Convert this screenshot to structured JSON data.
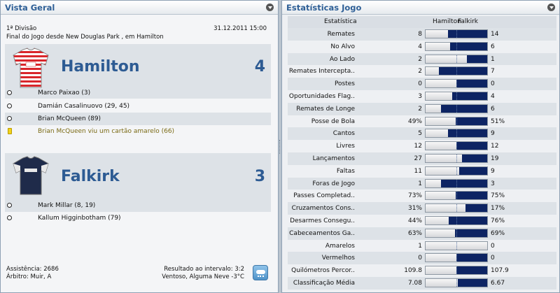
{
  "overview": {
    "title": "Vista Geral",
    "competition": "1ª Divisão",
    "datetime": "31.12.2011 15:00",
    "venue_line": "Final do Jogo desde New Douglas Park , em Hamilton",
    "home": {
      "name": "Hamilton",
      "score": "4",
      "events": [
        {
          "type": "goal",
          "text": "Marco Paixao (3)"
        },
        {
          "type": "goal",
          "text": "Damián Casalinuovo (29, 45)"
        },
        {
          "type": "goal",
          "text": "Brian McQueen (89)"
        },
        {
          "type": "yellow-card",
          "text": "Brian McQueen viu um cartão amarelo (66)"
        }
      ]
    },
    "away": {
      "name": "Falkirk",
      "score": "3",
      "events": [
        {
          "type": "goal",
          "text": "Mark Millar (8, 19)"
        },
        {
          "type": "goal",
          "text": "Kallum Higginbotham (79)"
        }
      ]
    },
    "attendance": "Assistência: 2686",
    "referee": "Árbitro: Muir, A",
    "halftime": "Resultado ao intervalo: 3:2",
    "weather": "Ventoso, Alguma Neve -3°C"
  },
  "stats": {
    "title": "Estatísticas Jogo",
    "header": {
      "stat": "Estatística",
      "home": "Hamilton",
      "away": "Falkirk"
    },
    "colors": {
      "away_bar": "#0d2463",
      "home_bar": "#e6e8ea"
    },
    "rows": [
      {
        "label": "Remates",
        "home": "8",
        "away": "14",
        "away_share": 0.64
      },
      {
        "label": "No Alvo",
        "home": "4",
        "away": "6",
        "away_share": 0.6
      },
      {
        "label": "Ao Lado",
        "home": "2",
        "away": "1",
        "away_share": 0.33
      },
      {
        "label": "Remates Intercepta..",
        "home": "2",
        "away": "7",
        "away_share": 0.78
      },
      {
        "label": "Postes",
        "home": "0",
        "away": "0",
        "away_share": 0.5
      },
      {
        "label": "Oportunidades Flag..",
        "home": "3",
        "away": "4",
        "away_share": 0.57
      },
      {
        "label": "Remates de Longe",
        "home": "2",
        "away": "6",
        "away_share": 0.75
      },
      {
        "label": "Posse de Bola",
        "home": "49%",
        "away": "51%",
        "away_share": 0.51
      },
      {
        "label": "Cantos",
        "home": "5",
        "away": "9",
        "away_share": 0.64
      },
      {
        "label": "Livres",
        "home": "12",
        "away": "12",
        "away_share": 0.5
      },
      {
        "label": "Lançamentos",
        "home": "27",
        "away": "19",
        "away_share": 0.41
      },
      {
        "label": "Faltas",
        "home": "11",
        "away": "9",
        "away_share": 0.45
      },
      {
        "label": "Foras de Jogo",
        "home": "1",
        "away": "3",
        "away_share": 0.75
      },
      {
        "label": "Passes Completad..",
        "home": "73%",
        "away": "75%",
        "away_share": 0.51
      },
      {
        "label": "Cruzamentos Cons..",
        "home": "31%",
        "away": "17%",
        "away_share": 0.35
      },
      {
        "label": "Desarmes Consegu..",
        "home": "44%",
        "away": "76%",
        "away_share": 0.63
      },
      {
        "label": "Cabeceamentos Ga..",
        "home": "63%",
        "away": "69%",
        "away_share": 0.52
      },
      {
        "label": "Amarelos",
        "home": "1",
        "away": "0",
        "away_share": 0.0
      },
      {
        "label": "Vermelhos",
        "home": "0",
        "away": "0",
        "away_share": 0.5
      },
      {
        "label": "Quilómetros Percor..",
        "home": "109.8",
        "away": "107.9",
        "away_share": 0.5
      },
      {
        "label": "Classificação Média",
        "home": "7.08",
        "away": "6.67",
        "away_share": 0.48
      }
    ]
  }
}
